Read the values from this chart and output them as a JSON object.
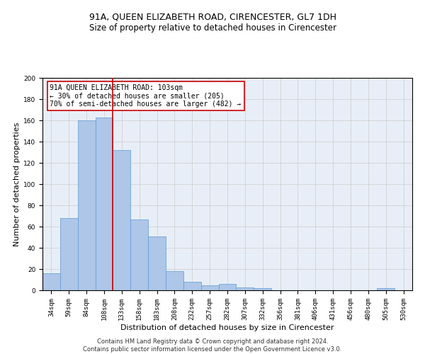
{
  "title": "91A, QUEEN ELIZABETH ROAD, CIRENCESTER, GL7 1DH",
  "subtitle": "Size of property relative to detached houses in Cirencester",
  "xlabel": "Distribution of detached houses by size in Cirencester",
  "ylabel": "Number of detached properties",
  "bar_labels": [
    "34sqm",
    "59sqm",
    "84sqm",
    "108sqm",
    "133sqm",
    "158sqm",
    "183sqm",
    "208sqm",
    "232sqm",
    "257sqm",
    "282sqm",
    "307sqm",
    "332sqm",
    "356sqm",
    "381sqm",
    "406sqm",
    "431sqm",
    "456sqm",
    "480sqm",
    "505sqm",
    "530sqm"
  ],
  "bar_values": [
    16,
    68,
    160,
    163,
    132,
    67,
    51,
    18,
    8,
    5,
    6,
    3,
    2,
    0,
    0,
    0,
    0,
    0,
    0,
    2,
    0
  ],
  "bar_color": "#aec6e8",
  "bar_edgecolor": "#5b9bd5",
  "vline_x": 3.5,
  "vline_color": "#cc0000",
  "annotation_text": "91A QUEEN ELIZABETH ROAD: 103sqm\n← 30% of detached houses are smaller (205)\n70% of semi-detached houses are larger (482) →",
  "annotation_box_color": "#ffffff",
  "annotation_box_edgecolor": "#cc0000",
  "ylim": [
    0,
    200
  ],
  "yticks": [
    0,
    20,
    40,
    60,
    80,
    100,
    120,
    140,
    160,
    180,
    200
  ],
  "grid_color": "#cccccc",
  "background_color": "#e8eef7",
  "footnote": "Contains HM Land Registry data © Crown copyright and database right 2024.\nContains public sector information licensed under the Open Government Licence v3.0.",
  "title_fontsize": 9,
  "subtitle_fontsize": 8.5,
  "xlabel_fontsize": 8,
  "ylabel_fontsize": 8,
  "tick_fontsize": 6.5,
  "annotation_fontsize": 7,
  "footnote_fontsize": 6
}
